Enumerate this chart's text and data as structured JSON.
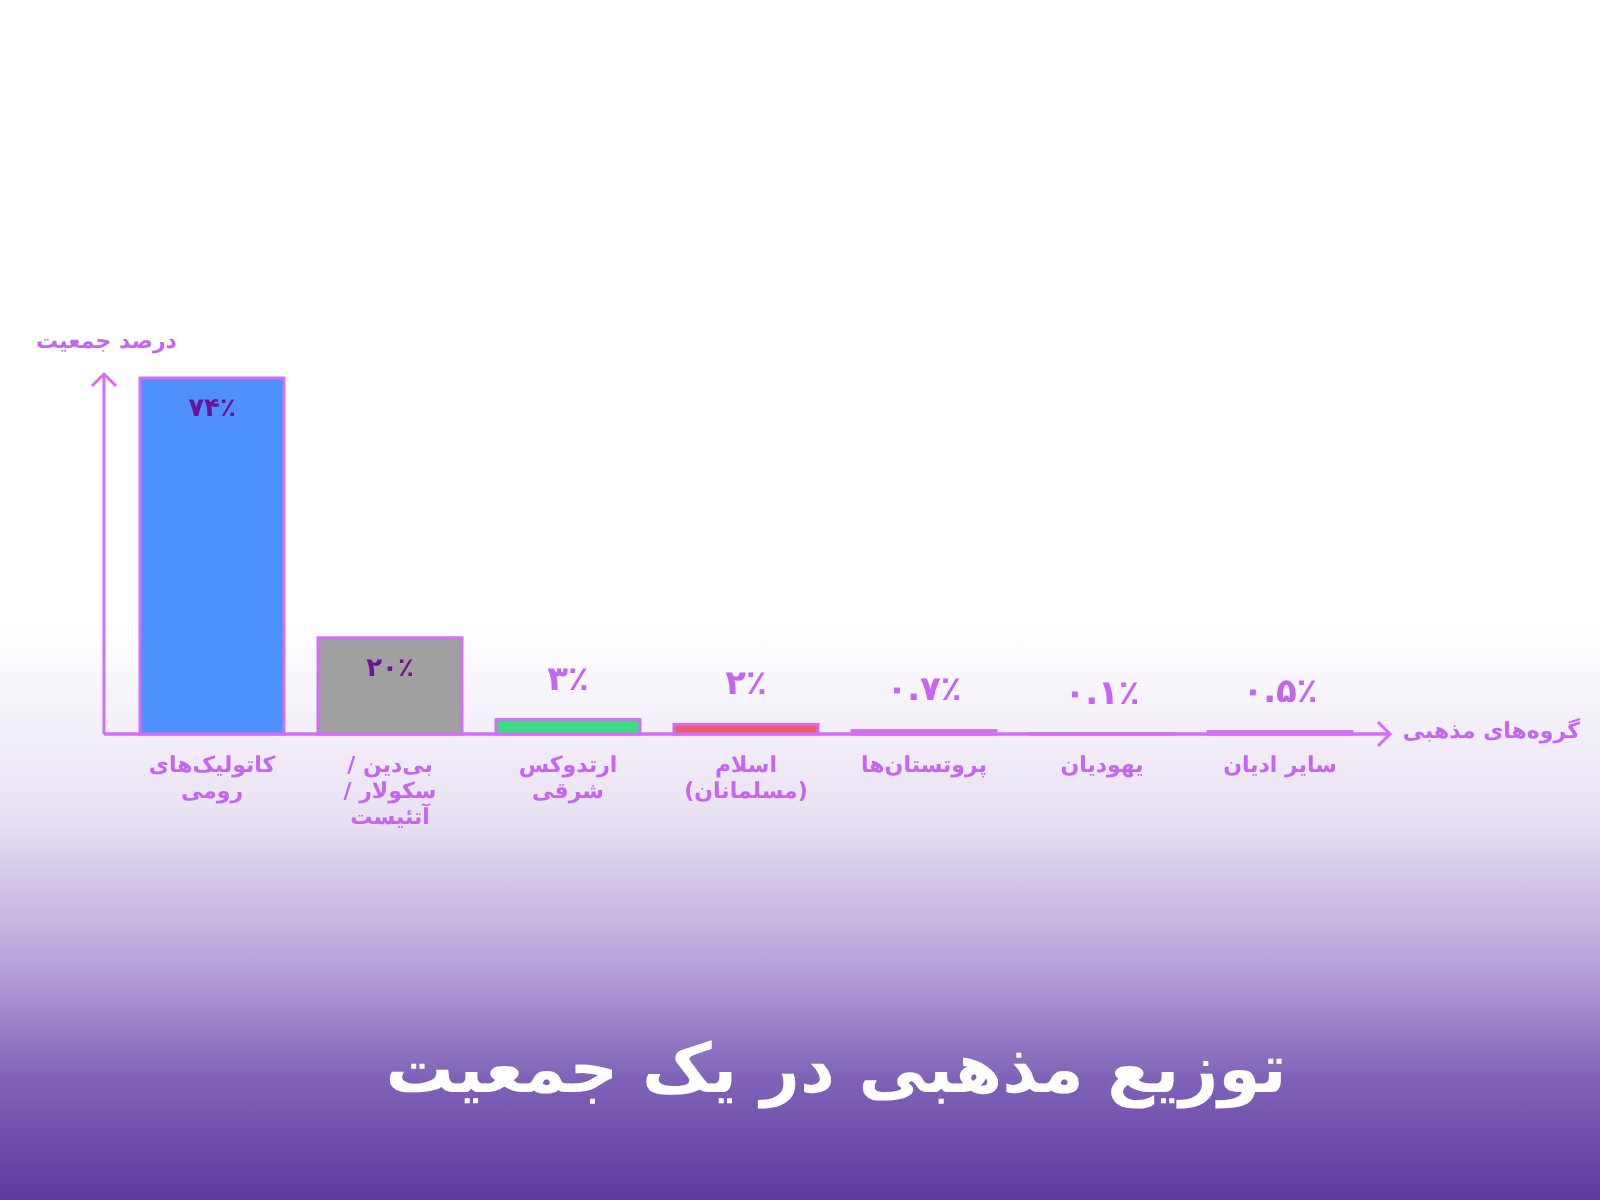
{
  "chart_data": {
    "type": "bar",
    "title": "توزیع مذهبی در یک جمعیت",
    "xlabel": "گروه‌های مذهبی",
    "ylabel": "درصد جمعیت",
    "categories": [
      "کاتولیک‌های رومی",
      "بی‌دین / سکولار / آتئیست",
      "ارتدوکس شرقی",
      "اسلام (مسلمانان)",
      "پروتستان‌ها",
      "یهودیان",
      "سایر ادیان"
    ],
    "values": [
      74,
      20,
      3,
      2,
      0.7,
      0.1,
      0.5
    ],
    "value_labels": [
      "۷۴٪",
      "۲۰٪",
      "۳٪",
      "۲٪",
      "۰.۷٪",
      "۰.۱٪",
      "۰.۵٪"
    ],
    "colors": [
      "#4d90fe",
      "#a0a0a0",
      "#3ddc84",
      "#f05a6e",
      "#c98af2",
      "#c98af2",
      "#c98af2"
    ]
  }
}
